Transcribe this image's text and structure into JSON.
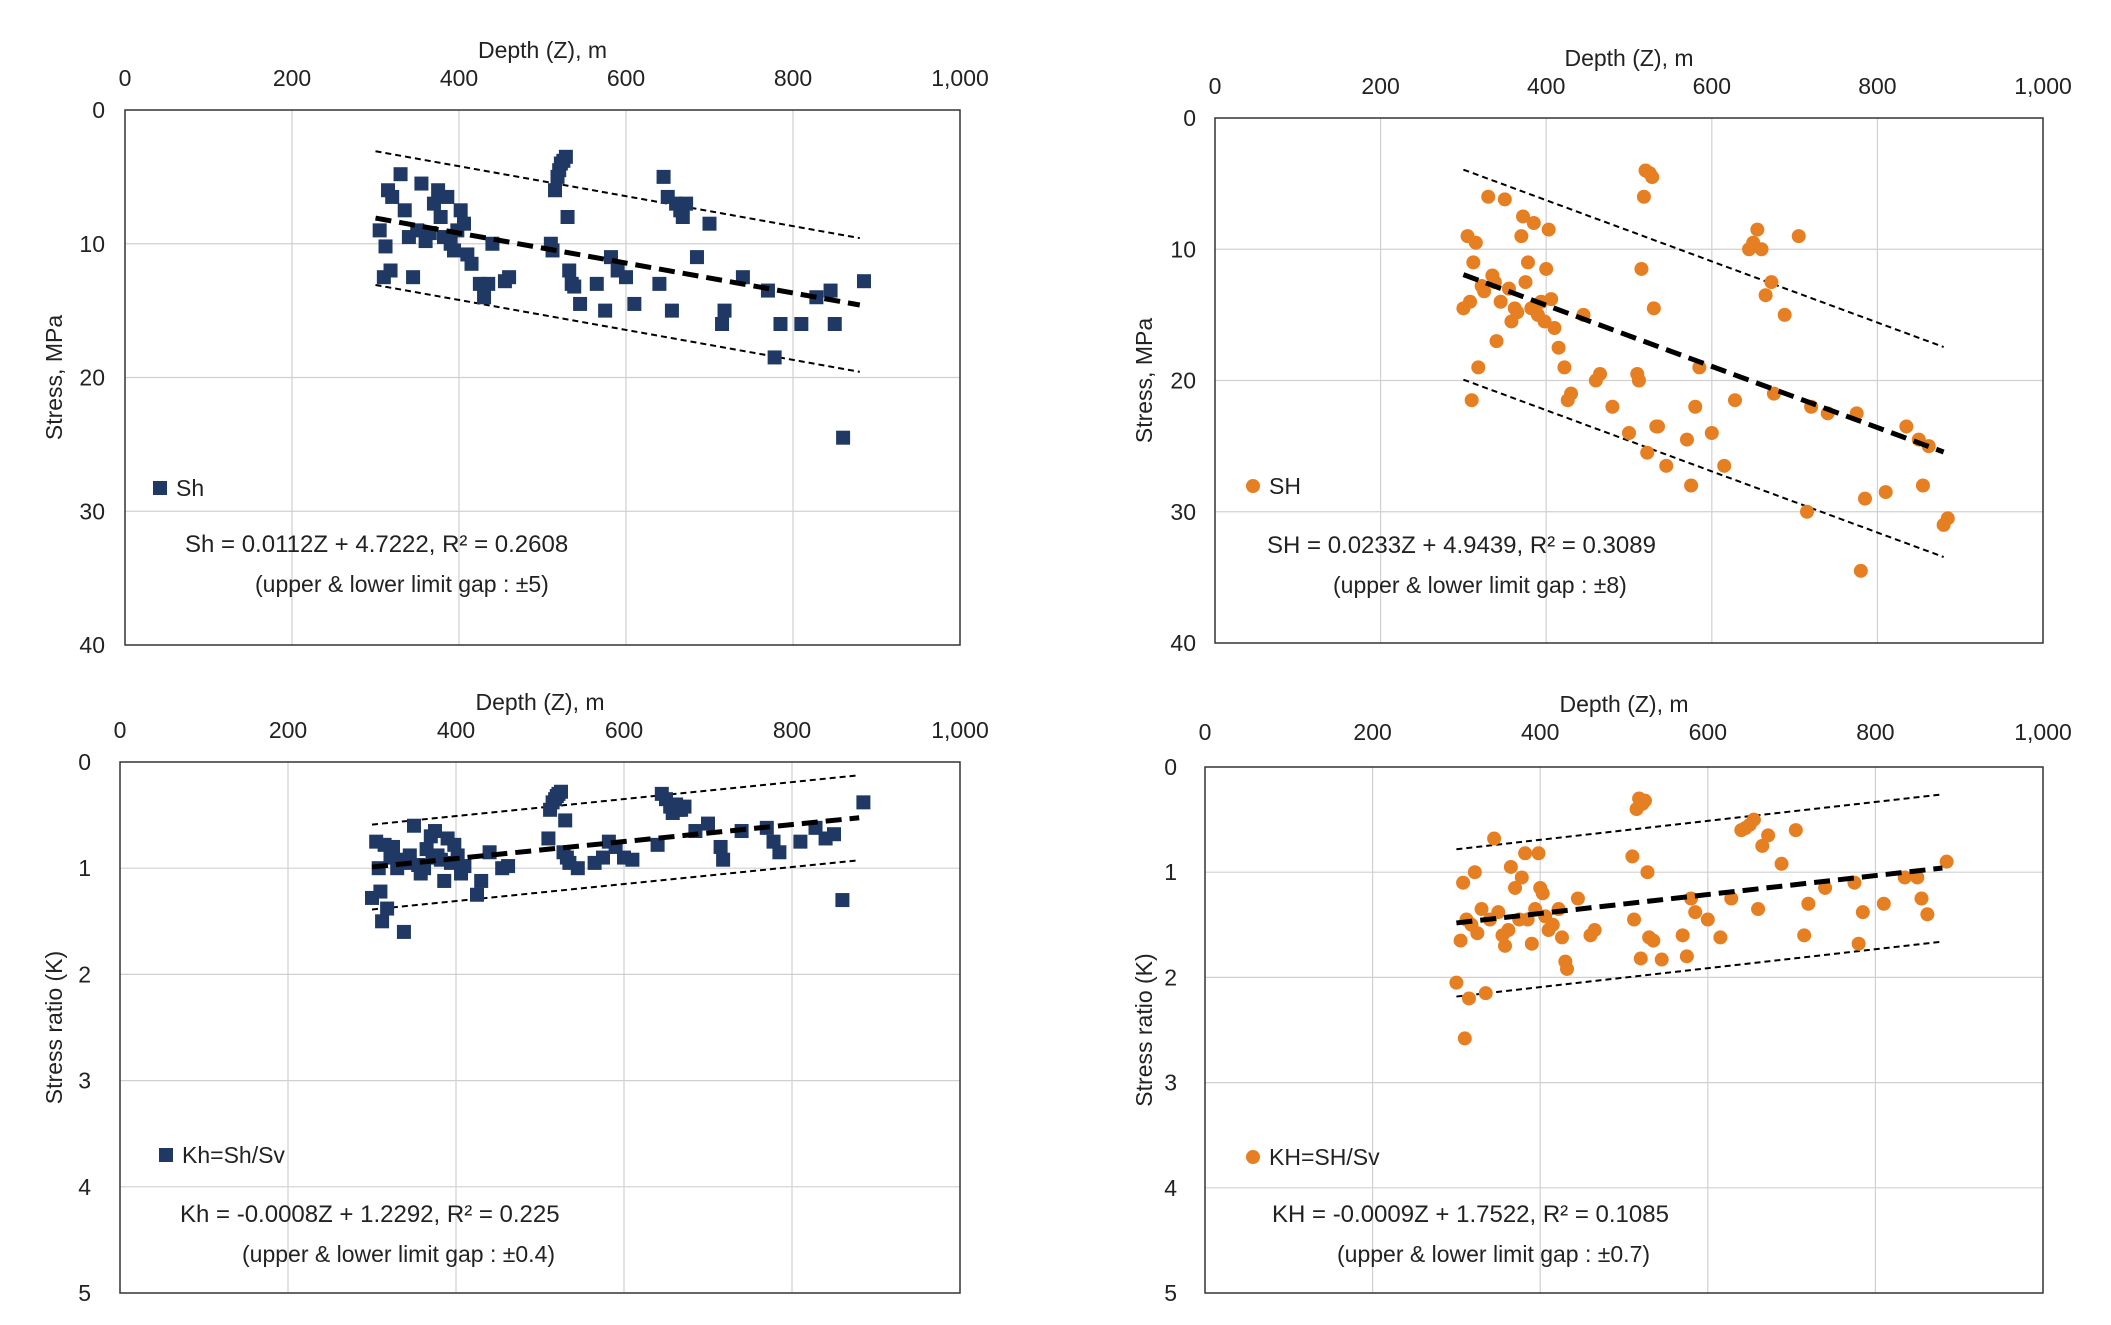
{
  "colors": {
    "navy": "#1f3864",
    "orange": "#e67e22",
    "grid": "#d0d0d0",
    "axis": "#333333",
    "trend": "#000000"
  },
  "chart_data": [
    {
      "id": "sh",
      "type": "scatter",
      "title": "",
      "xlabel": "Depth (Z), m",
      "ylabel": "Stress, MPa",
      "xlim": [
        0,
        1000
      ],
      "ylim": [
        0,
        40
      ],
      "x_axis_position": "top",
      "y_inverted": true,
      "xticks": [
        "0",
        "200",
        "400",
        "600",
        "800",
        "1,000"
      ],
      "yticks": [
        "0",
        "10",
        "20",
        "30",
        "40"
      ],
      "marker": "square",
      "legend": "Sh",
      "legend_position": "bottom-left",
      "equation": "Sh = 0.0112Z + 4.7222, R² = 0.2608",
      "gap_note": "(upper & lower limit gap : ±5)",
      "trend": {
        "slope": 0.0112,
        "intercept": 4.7222,
        "gap": 5,
        "x_range": [
          300,
          880
        ]
      },
      "points": [
        [
          305,
          9
        ],
        [
          310,
          12.5
        ],
        [
          312,
          10.2
        ],
        [
          315,
          6
        ],
        [
          318,
          12
        ],
        [
          320,
          6.5
        ],
        [
          330,
          4.8
        ],
        [
          335,
          7.5
        ],
        [
          340,
          9.5
        ],
        [
          345,
          12.5
        ],
        [
          350,
          9
        ],
        [
          355,
          5.5
        ],
        [
          360,
          9.8
        ],
        [
          365,
          9.2
        ],
        [
          370,
          7
        ],
        [
          375,
          6
        ],
        [
          378,
          8
        ],
        [
          382,
          9.5
        ],
        [
          386,
          6.5
        ],
        [
          390,
          10
        ],
        [
          394,
          10.5
        ],
        [
          398,
          9
        ],
        [
          402,
          7.5
        ],
        [
          406,
          8.5
        ],
        [
          410,
          10.8
        ],
        [
          415,
          11.5
        ],
        [
          425,
          13
        ],
        [
          430,
          14
        ],
        [
          435,
          13
        ],
        [
          440,
          10
        ],
        [
          455,
          12.8
        ],
        [
          460,
          12.5
        ],
        [
          510,
          10
        ],
        [
          512,
          10.5
        ],
        [
          515,
          6
        ],
        [
          518,
          5
        ],
        [
          520,
          4.5
        ],
        [
          522,
          4
        ],
        [
          525,
          3.8
        ],
        [
          528,
          3.5
        ],
        [
          530,
          8
        ],
        [
          532,
          12
        ],
        [
          535,
          13
        ],
        [
          538,
          13.2
        ],
        [
          545,
          14.5
        ],
        [
          565,
          13
        ],
        [
          575,
          15
        ],
        [
          582,
          11
        ],
        [
          590,
          12
        ],
        [
          600,
          12.5
        ],
        [
          610,
          14.5
        ],
        [
          640,
          13
        ],
        [
          645,
          5
        ],
        [
          650,
          6.5
        ],
        [
          655,
          15
        ],
        [
          660,
          7
        ],
        [
          665,
          7.5
        ],
        [
          668,
          8
        ],
        [
          672,
          7
        ],
        [
          685,
          11
        ],
        [
          700,
          8.5
        ],
        [
          715,
          16
        ],
        [
          718,
          15
        ],
        [
          740,
          12.5
        ],
        [
          770,
          13.5
        ],
        [
          778,
          18.5
        ],
        [
          785,
          16
        ],
        [
          810,
          16
        ],
        [
          828,
          14
        ],
        [
          845,
          13.5
        ],
        [
          850,
          16
        ],
        [
          860,
          24.5
        ],
        [
          885,
          12.8
        ]
      ]
    },
    {
      "id": "SH",
      "type": "scatter",
      "title": "",
      "xlabel": "Depth (Z), m",
      "ylabel": "Stress, MPa",
      "xlim": [
        0,
        1000
      ],
      "ylim": [
        0,
        40
      ],
      "x_axis_position": "top",
      "y_inverted": true,
      "xticks": [
        "0",
        "200",
        "400",
        "600",
        "800",
        "1,000"
      ],
      "yticks": [
        "0",
        "10",
        "20",
        "30",
        "40"
      ],
      "marker": "circle",
      "legend": "SH",
      "legend_position": "bottom-left",
      "equation": "SH = 0.0233Z + 4.9439, R² = 0.3089",
      "gap_note": "(upper & lower limit gap : ±8)",
      "trend": {
        "slope": 0.0233,
        "intercept": 4.9439,
        "gap": 8,
        "x_range": [
          300,
          880
        ]
      },
      "points": [
        [
          300,
          14.5
        ],
        [
          305,
          9
        ],
        [
          308,
          14
        ],
        [
          310,
          21.5
        ],
        [
          312,
          11
        ],
        [
          315,
          9.5
        ],
        [
          318,
          19
        ],
        [
          322,
          12.8
        ],
        [
          325,
          13.2
        ],
        [
          330,
          6
        ],
        [
          335,
          12
        ],
        [
          338,
          12.5
        ],
        [
          340,
          17
        ],
        [
          345,
          14
        ],
        [
          350,
          6.2
        ],
        [
          355,
          13
        ],
        [
          358,
          15.5
        ],
        [
          362,
          14.5
        ],
        [
          365,
          14.8
        ],
        [
          370,
          9
        ],
        [
          372,
          7.5
        ],
        [
          375,
          12.5
        ],
        [
          378,
          11
        ],
        [
          382,
          14.5
        ],
        [
          385,
          8
        ],
        [
          390,
          15
        ],
        [
          394,
          14
        ],
        [
          398,
          15.5
        ],
        [
          400,
          11.5
        ],
        [
          403,
          8.5
        ],
        [
          406,
          13.8
        ],
        [
          410,
          16
        ],
        [
          415,
          17.5
        ],
        [
          422,
          19
        ],
        [
          426,
          21.5
        ],
        [
          430,
          21
        ],
        [
          445,
          15
        ],
        [
          460,
          20
        ],
        [
          465,
          19.5
        ],
        [
          480,
          22
        ],
        [
          500,
          24
        ],
        [
          510,
          19.5
        ],
        [
          512,
          20
        ],
        [
          515,
          11.5
        ],
        [
          518,
          6
        ],
        [
          520,
          4
        ],
        [
          522,
          25.5
        ],
        [
          525,
          4.2
        ],
        [
          528,
          4.5
        ],
        [
          530,
          14.5
        ],
        [
          533,
          23.5
        ],
        [
          535,
          23.5
        ],
        [
          545,
          26.5
        ],
        [
          570,
          24.5
        ],
        [
          575,
          28
        ],
        [
          580,
          22
        ],
        [
          585,
          19
        ],
        [
          600,
          24
        ],
        [
          615,
          26.5
        ],
        [
          628,
          21.5
        ],
        [
          645,
          10
        ],
        [
          650,
          9.5
        ],
        [
          655,
          8.5
        ],
        [
          660,
          10
        ],
        [
          665,
          13.5
        ],
        [
          672,
          12.5
        ],
        [
          675,
          21
        ],
        [
          688,
          15
        ],
        [
          705,
          9
        ],
        [
          715,
          30
        ],
        [
          720,
          22
        ],
        [
          740,
          22.5
        ],
        [
          775,
          22.5
        ],
        [
          785,
          29
        ],
        [
          810,
          28.5
        ],
        [
          835,
          23.5
        ],
        [
          850,
          24.5
        ],
        [
          855,
          28
        ],
        [
          862,
          25
        ],
        [
          880,
          31
        ],
        [
          885,
          30.5
        ],
        [
          780,
          34.5
        ]
      ]
    },
    {
      "id": "kh",
      "type": "scatter",
      "title": "",
      "xlabel": "Depth (Z), m",
      "ylabel": "Stress ratio (K)",
      "xlim": [
        0,
        1000
      ],
      "ylim": [
        0,
        5
      ],
      "x_axis_position": "top",
      "y_inverted": true,
      "xticks": [
        "0",
        "200",
        "400",
        "600",
        "800",
        "1,000"
      ],
      "yticks": [
        "0",
        "1",
        "2",
        "3",
        "4",
        "5"
      ],
      "marker": "square",
      "legend": "Kh=Sh/Sv",
      "legend_position": "bottom-left",
      "equation": "Kh = -0.0008Z + 1.2292, R² = 0.225",
      "gap_note": "(upper & lower limit gap : ±0.4)",
      "trend": {
        "slope": -0.0008,
        "intercept": 1.2292,
        "gap": 0.4,
        "x_range": [
          300,
          880
        ]
      },
      "points": [
        [
          300,
          1.28
        ],
        [
          305,
          0.75
        ],
        [
          308,
          1.0
        ],
        [
          310,
          1.22
        ],
        [
          312,
          1.5
        ],
        [
          315,
          0.78
        ],
        [
          318,
          1.38
        ],
        [
          322,
          0.9
        ],
        [
          325,
          0.8
        ],
        [
          330,
          1.0
        ],
        [
          335,
          0.92
        ],
        [
          338,
          1.6
        ],
        [
          342,
          0.95
        ],
        [
          345,
          0.88
        ],
        [
          350,
          0.6
        ],
        [
          355,
          0.97
        ],
        [
          358,
          1.05
        ],
        [
          362,
          1.0
        ],
        [
          365,
          0.82
        ],
        [
          370,
          0.7
        ],
        [
          372,
          0.9
        ],
        [
          375,
          0.65
        ],
        [
          378,
          0.88
        ],
        [
          382,
          0.92
        ],
        [
          386,
          1.12
        ],
        [
          390,
          0.72
        ],
        [
          394,
          0.95
        ],
        [
          398,
          0.78
        ],
        [
          402,
          0.88
        ],
        [
          406,
          1.05
        ],
        [
          410,
          0.98
        ],
        [
          425,
          1.25
        ],
        [
          430,
          1.12
        ],
        [
          440,
          0.85
        ],
        [
          455,
          1.0
        ],
        [
          462,
          0.98
        ],
        [
          510,
          0.72
        ],
        [
          512,
          0.45
        ],
        [
          515,
          0.38
        ],
        [
          518,
          0.35
        ],
        [
          520,
          0.32
        ],
        [
          522,
          0.3
        ],
        [
          525,
          0.28
        ],
        [
          528,
          0.85
        ],
        [
          530,
          0.55
        ],
        [
          532,
          0.9
        ],
        [
          535,
          0.95
        ],
        [
          545,
          1.0
        ],
        [
          565,
          0.95
        ],
        [
          575,
          0.9
        ],
        [
          582,
          0.75
        ],
        [
          590,
          0.8
        ],
        [
          600,
          0.9
        ],
        [
          610,
          0.92
        ],
        [
          640,
          0.78
        ],
        [
          645,
          0.3
        ],
        [
          650,
          0.35
        ],
        [
          655,
          0.42
        ],
        [
          658,
          0.48
        ],
        [
          662,
          0.4
        ],
        [
          665,
          0.45
        ],
        [
          668,
          0.45
        ],
        [
          672,
          0.42
        ],
        [
          685,
          0.65
        ],
        [
          700,
          0.58
        ],
        [
          715,
          0.8
        ],
        [
          718,
          0.92
        ],
        [
          740,
          0.65
        ],
        [
          770,
          0.62
        ],
        [
          778,
          0.75
        ],
        [
          785,
          0.85
        ],
        [
          810,
          0.75
        ],
        [
          828,
          0.62
        ],
        [
          840,
          0.72
        ],
        [
          850,
          0.68
        ],
        [
          860,
          1.3
        ],
        [
          885,
          0.38
        ]
      ]
    },
    {
      "id": "KH",
      "type": "scatter",
      "title": "",
      "xlabel": "Depth (Z), m",
      "ylabel": "Stress ratio (K)",
      "xlim": [
        0,
        1000
      ],
      "ylim": [
        0,
        5
      ],
      "x_axis_position": "top",
      "y_inverted": true,
      "xticks": [
        "0",
        "200",
        "400",
        "600",
        "800",
        "1,000"
      ],
      "yticks": [
        "0",
        "1",
        "2",
        "3",
        "4",
        "5"
      ],
      "marker": "circle",
      "legend": "KH=SH/Sv",
      "legend_position": "bottom-left",
      "equation": "KH = -0.0009Z + 1.7522, R² = 0.1085",
      "gap_note": "(upper & lower limit gap : ±0.7)",
      "trend": {
        "slope": -0.0009,
        "intercept": 1.7522,
        "gap": 0.7,
        "x_range": [
          300,
          880
        ]
      },
      "points": [
        [
          300,
          2.05
        ],
        [
          305,
          1.65
        ],
        [
          308,
          1.1
        ],
        [
          310,
          2.58
        ],
        [
          312,
          1.45
        ],
        [
          315,
          2.2
        ],
        [
          318,
          1.5
        ],
        [
          322,
          1.0
        ],
        [
          325,
          1.58
        ],
        [
          330,
          1.35
        ],
        [
          335,
          2.15
        ],
        [
          340,
          1.45
        ],
        [
          345,
          0.68
        ],
        [
          350,
          1.38
        ],
        [
          355,
          1.6
        ],
        [
          358,
          1.7
        ],
        [
          362,
          1.55
        ],
        [
          365,
          0.95
        ],
        [
          370,
          1.15
        ],
        [
          375,
          1.45
        ],
        [
          378,
          1.05
        ],
        [
          382,
          0.82
        ],
        [
          385,
          1.45
        ],
        [
          390,
          1.68
        ],
        [
          394,
          1.35
        ],
        [
          398,
          0.82
        ],
        [
          400,
          1.15
        ],
        [
          403,
          1.2
        ],
        [
          406,
          1.42
        ],
        [
          410,
          1.55
        ],
        [
          415,
          1.5
        ],
        [
          422,
          1.35
        ],
        [
          426,
          1.62
        ],
        [
          430,
          1.85
        ],
        [
          432,
          1.92
        ],
        [
          445,
          1.25
        ],
        [
          460,
          1.6
        ],
        [
          465,
          1.55
        ],
        [
          510,
          0.85
        ],
        [
          512,
          1.45
        ],
        [
          515,
          0.4
        ],
        [
          518,
          0.3
        ],
        [
          520,
          1.82
        ],
        [
          522,
          0.35
        ],
        [
          525,
          0.32
        ],
        [
          528,
          1.0
        ],
        [
          530,
          1.62
        ],
        [
          535,
          1.65
        ],
        [
          545,
          1.83
        ],
        [
          570,
          1.6
        ],
        [
          575,
          1.8
        ],
        [
          580,
          1.25
        ],
        [
          585,
          1.38
        ],
        [
          600,
          1.45
        ],
        [
          615,
          1.62
        ],
        [
          628,
          1.25
        ],
        [
          640,
          0.6
        ],
        [
          645,
          0.58
        ],
        [
          650,
          0.55
        ],
        [
          655,
          0.5
        ],
        [
          660,
          1.35
        ],
        [
          665,
          0.75
        ],
        [
          672,
          0.65
        ],
        [
          688,
          0.92
        ],
        [
          705,
          0.6
        ],
        [
          715,
          1.6
        ],
        [
          720,
          1.3
        ],
        [
          740,
          1.15
        ],
        [
          775,
          1.1
        ],
        [
          780,
          1.68
        ],
        [
          785,
          1.38
        ],
        [
          810,
          1.3
        ],
        [
          835,
          1.05
        ],
        [
          850,
          1.05
        ],
        [
          855,
          1.25
        ],
        [
          862,
          1.4
        ],
        [
          885,
          0.9
        ]
      ]
    }
  ]
}
